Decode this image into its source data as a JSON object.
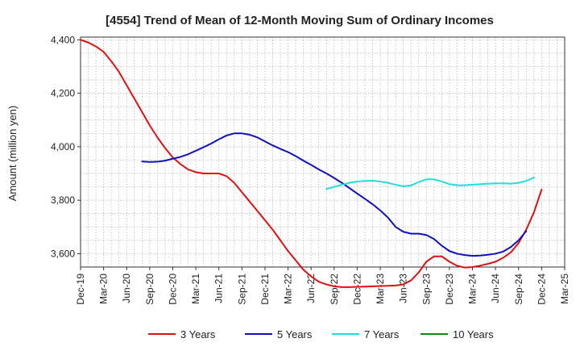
{
  "chart_data": {
    "type": "line",
    "title": "[4554]  Trend of Mean of 12-Month Moving Sum of Ordinary Incomes",
    "ylabel": "Amount (million yen)",
    "xlabel": "",
    "ylim": [
      3550,
      4410
    ],
    "yticks": [
      3600,
      3800,
      4000,
      4200,
      4400
    ],
    "ytick_labels": [
      "3,600",
      "3,800",
      "4,000",
      "4,200",
      "4,400"
    ],
    "xlim": [
      "2019-12",
      "2025-03"
    ],
    "xticks": [
      "2019-12",
      "2020-03",
      "2020-06",
      "2020-09",
      "2020-12",
      "2021-03",
      "2021-06",
      "2021-09",
      "2021-12",
      "2022-03",
      "2022-06",
      "2022-09",
      "2022-12",
      "2023-03",
      "2023-06",
      "2023-09",
      "2023-12",
      "2024-03",
      "2024-06",
      "2024-09",
      "2024-12",
      "2025-03"
    ],
    "xtick_labels": [
      "Dec-19",
      "Mar-20",
      "Jun-20",
      "Sep-20",
      "Dec-20",
      "Mar-21",
      "Jun-21",
      "Sep-21",
      "Dec-21",
      "Mar-22",
      "Jun-22",
      "Sep-22",
      "Dec-22",
      "Mar-23",
      "Jun-23",
      "Sep-23",
      "Dec-23",
      "Mar-24",
      "Jun-24",
      "Sep-24",
      "Dec-24",
      "Mar-25"
    ],
    "grid": true,
    "legend_position": "bottom",
    "series": [
      {
        "name": "3 Years",
        "color": "#dd1111",
        "start": "2019-12",
        "values": [
          4400,
          4390,
          4375,
          4355,
          4320,
          4280,
          4230,
          4180,
          4130,
          4080,
          4035,
          3995,
          3960,
          3935,
          3915,
          3905,
          3900,
          3900,
          3900,
          3890,
          3865,
          3830,
          3795,
          3760,
          3725,
          3690,
          3650,
          3610,
          3575,
          3540,
          3515,
          3495,
          3485,
          3478,
          3475,
          3475,
          3476,
          3477,
          3478,
          3479,
          3480,
          3481,
          3485,
          3500,
          3530,
          3570,
          3590,
          3590,
          3570,
          3555,
          3548,
          3550,
          3555,
          3562,
          3570,
          3585,
          3605,
          3640,
          3690,
          3755,
          3840
        ]
      },
      {
        "name": "5 Years",
        "color": "#1111bb",
        "start": "2020-08",
        "values": [
          3945,
          3943,
          3944,
          3948,
          3955,
          3962,
          3972,
          3985,
          3998,
          4012,
          4028,
          4042,
          4050,
          4050,
          4045,
          4035,
          4020,
          4005,
          3992,
          3980,
          3965,
          3948,
          3932,
          3915,
          3900,
          3883,
          3865,
          3845,
          3825,
          3805,
          3785,
          3762,
          3735,
          3700,
          3682,
          3675,
          3675,
          3670,
          3655,
          3630,
          3610,
          3600,
          3595,
          3592,
          3593,
          3596,
          3600,
          3608,
          3625,
          3650,
          3685
        ]
      },
      {
        "name": "7 Years",
        "color": "#22dddd",
        "start": "2022-08",
        "values": [
          3842,
          3850,
          3858,
          3865,
          3870,
          3872,
          3873,
          3870,
          3865,
          3858,
          3852,
          3855,
          3868,
          3878,
          3878,
          3870,
          3860,
          3856,
          3856,
          3858,
          3860,
          3862,
          3863,
          3863,
          3862,
          3865,
          3872,
          3885
        ]
      },
      {
        "name": "10 Years",
        "color": "#118811",
        "start": "2019-12",
        "values": []
      }
    ]
  }
}
